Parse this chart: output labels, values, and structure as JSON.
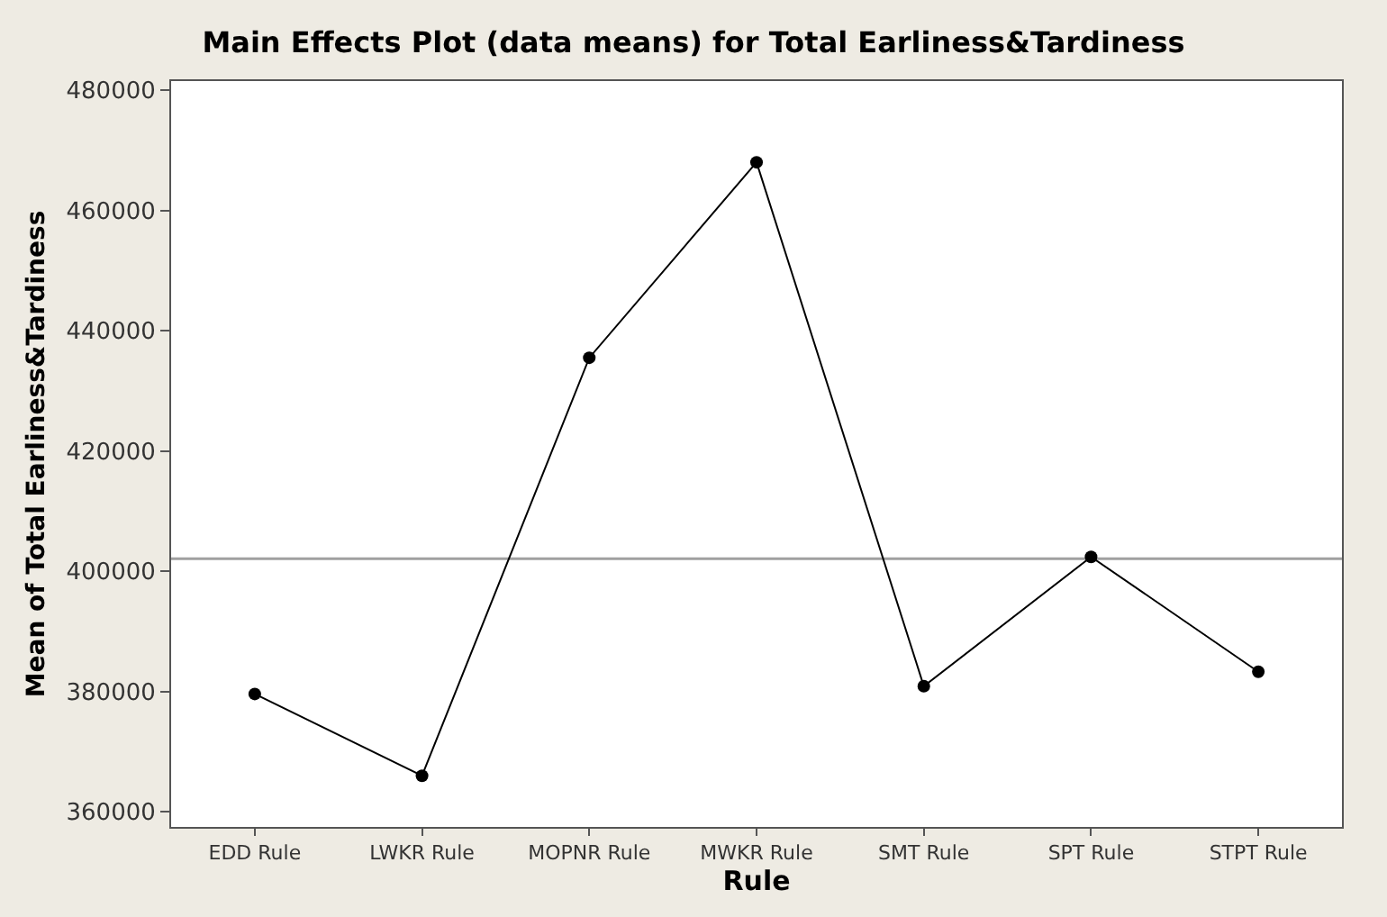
{
  "chart_data": {
    "type": "line",
    "title": "Main Effects Plot (data means) for Total Earliness&Tardiness",
    "xlabel": "Rule",
    "ylabel": "Mean of Total Earliness&Tardiness",
    "categories": [
      "EDD Rule",
      "LWKR Rule",
      "MOPNR Rule",
      "MWKR Rule",
      "SMT Rule",
      "SPT Rule",
      "STPT Rule"
    ],
    "series": [
      {
        "color": "#000000",
        "values": [
          379600,
          366000,
          435500,
          468000,
          380900,
          402400,
          383300
        ]
      }
    ],
    "ylim": [
      357500,
      481500
    ],
    "yticks": [
      360000,
      380000,
      400000,
      420000,
      440000,
      460000,
      480000
    ],
    "ref_lines": [
      {
        "axis": "y",
        "value": 402100,
        "color": "#a0a0a0"
      }
    ],
    "grid": false,
    "marker": "circle",
    "line_style": "solid"
  }
}
